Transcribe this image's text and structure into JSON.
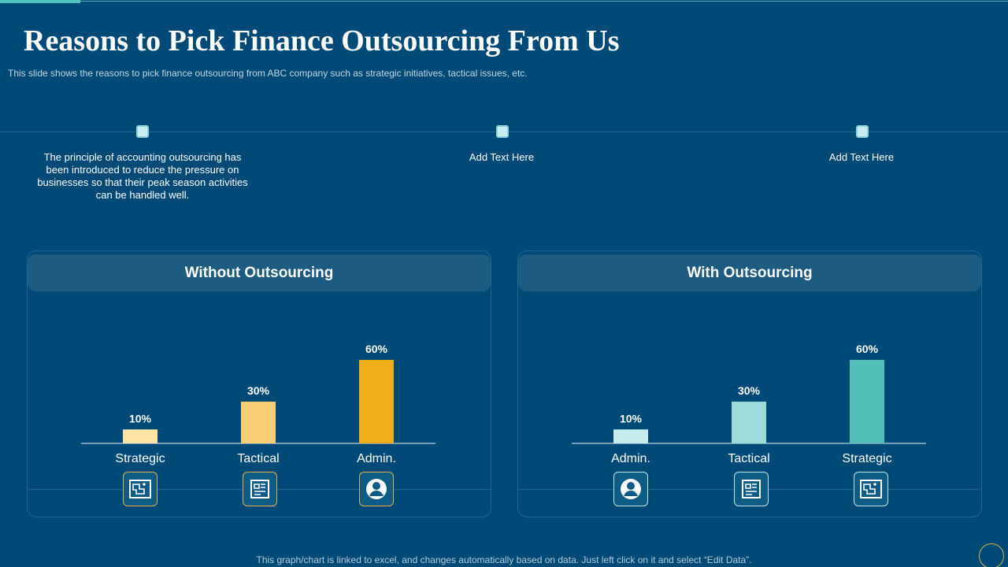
{
  "slide": {
    "title": "Reasons to Pick Finance Outsourcing From Us",
    "subtitle": "This slide shows the reasons to pick finance outsourcing from ABC company such as strategic initiatives, tactical issues, etc.",
    "footer": "This graph/chart is linked to excel, and changes automatically based on data. Just left click on it and select “Edit Data”."
  },
  "timeline": {
    "points": [
      "The principle of accounting outsourcing has been introduced to reduce the pressure on businesses so that their peak season activities can be handled well.",
      "Add Text Here",
      "Add Text Here"
    ]
  },
  "icons": {
    "without": [
      "blueprint-icon",
      "plan-icon",
      "user-icon"
    ],
    "with": [
      "user-icon",
      "plan-icon",
      "blueprint-icon"
    ]
  },
  "chart_data": [
    {
      "type": "bar",
      "title": "Without Outsourcing",
      "categories": [
        "Strategic",
        "Tactical",
        "Admin."
      ],
      "values": [
        10,
        30,
        60
      ],
      "data_labels": [
        "10%",
        "30%",
        "60%"
      ],
      "colors": [
        "#fde3a6",
        "#f9cf76",
        "#f0ae1b"
      ],
      "ylim": [
        0,
        60
      ],
      "grid": false,
      "legend": "none"
    },
    {
      "type": "bar",
      "title": "With Outsourcing",
      "categories": [
        "Admin.",
        "Tactical",
        "Strategic"
      ],
      "values": [
        10,
        30,
        60
      ],
      "data_labels": [
        "10%",
        "30%",
        "60%"
      ],
      "colors": [
        "#c6ecee",
        "#9ddcd9",
        "#52bfb9"
      ],
      "ylim": [
        0,
        60
      ],
      "grid": false,
      "legend": "none"
    }
  ]
}
